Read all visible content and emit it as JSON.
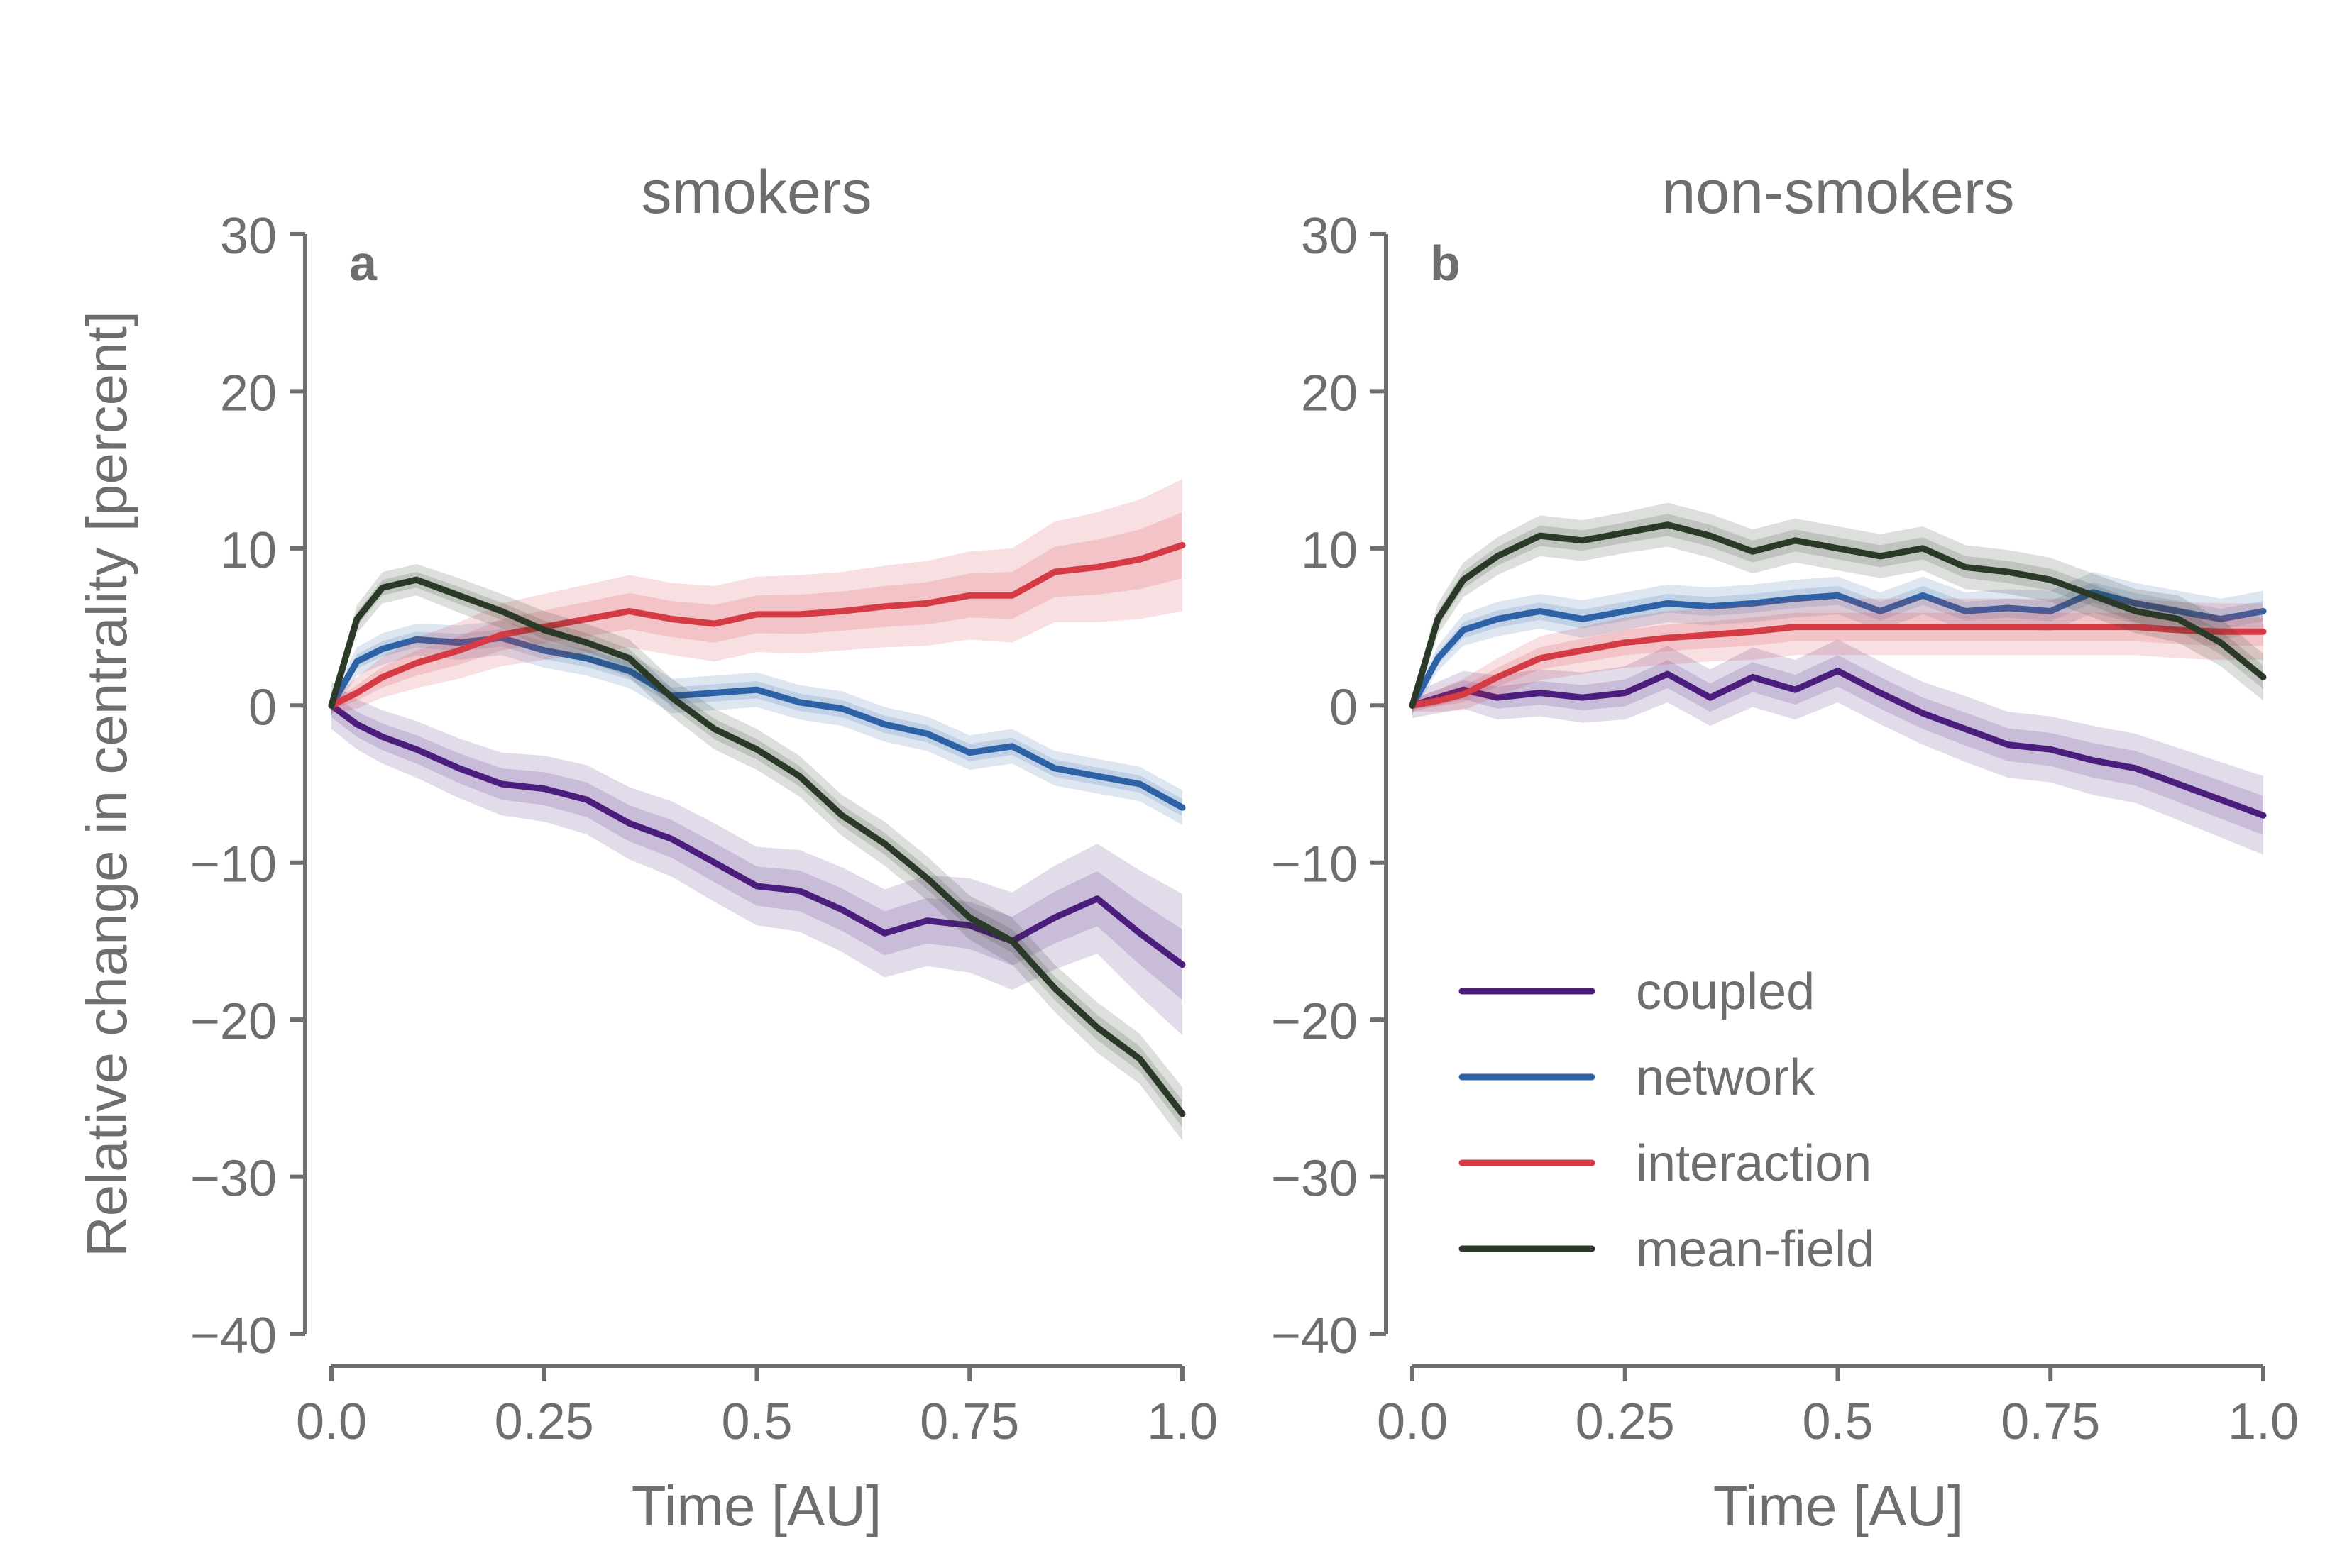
{
  "chart_data": [
    {
      "panel": "a",
      "type": "line",
      "title": "smokers",
      "xlabel": "Time [AU]",
      "ylabel": "Relative change in centrality [percent]",
      "xlim": [
        0,
        1
      ],
      "ylim": [
        -40,
        30
      ],
      "xticks": [
        0,
        0.25,
        0.5,
        0.75,
        1.0
      ],
      "xtick_labels": [
        "0.0",
        "0.25",
        "0.5",
        "0.75",
        "1.0"
      ],
      "yticks": [
        30,
        20,
        10,
        0,
        -10,
        -20,
        -30,
        -40
      ],
      "ytick_labels": [
        "30",
        "20",
        "10",
        "0",
        "−10",
        "−20",
        "−30",
        "−40"
      ],
      "x": [
        0,
        0.03,
        0.06,
        0.1,
        0.15,
        0.2,
        0.25,
        0.3,
        0.35,
        0.4,
        0.45,
        0.5,
        0.55,
        0.6,
        0.65,
        0.7,
        0.75,
        0.8,
        0.85,
        0.9,
        0.95,
        1.0
      ],
      "series": [
        {
          "name": "coupled",
          "values": [
            0,
            -1.2,
            -2,
            -2.8,
            -4,
            -5,
            -5.3,
            -6,
            -7.5,
            -8.5,
            -10,
            -11.5,
            -11.8,
            -13,
            -14.5,
            -13.7,
            -14,
            -15,
            -13.5,
            -12.3,
            -14.5,
            -16.5
          ],
          "band": [
            1.5,
            1.6,
            1.7,
            1.8,
            1.9,
            2.0,
            2.1,
            2.2,
            2.3,
            2.4,
            2.5,
            2.5,
            2.6,
            2.7,
            2.8,
            2.9,
            3.0,
            3.1,
            3.3,
            3.5,
            4.0,
            4.5
          ]
        },
        {
          "name": "network",
          "values": [
            0,
            2.8,
            3.6,
            4.2,
            4.0,
            4.3,
            3.5,
            3.0,
            2.2,
            0.6,
            0.8,
            1.0,
            0.2,
            -0.2,
            -1.2,
            -1.8,
            -3.0,
            -2.6,
            -4.0,
            -4.5,
            -5.0,
            -6.5
          ],
          "band": [
            0.6,
            0.9,
            1.0,
            1.0,
            1.1,
            1.1,
            1.1,
            1.1,
            1.1,
            1.1,
            1.1,
            1.1,
            1.1,
            1.1,
            1.1,
            1.1,
            1.1,
            1.1,
            1.1,
            1.1,
            1.1,
            1.1
          ]
        },
        {
          "name": "interaction",
          "values": [
            0,
            0.8,
            1.8,
            2.7,
            3.5,
            4.5,
            5.0,
            5.5,
            6.0,
            5.5,
            5.2,
            5.8,
            5.8,
            6.0,
            6.3,
            6.5,
            7.0,
            7.0,
            8.5,
            8.8,
            9.3,
            10.2
          ],
          "band": [
            0.5,
            1.0,
            1.3,
            1.6,
            1.8,
            2.0,
            2.1,
            2.2,
            2.3,
            2.3,
            2.4,
            2.4,
            2.5,
            2.5,
            2.6,
            2.7,
            2.8,
            3.0,
            3.2,
            3.5,
            3.8,
            4.2
          ]
        },
        {
          "name": "mean-field",
          "values": [
            0,
            5.5,
            7.5,
            8.0,
            7.0,
            6.0,
            4.8,
            4.0,
            3.0,
            0.5,
            -1.5,
            -2.8,
            -4.5,
            -7.0,
            -8.8,
            -11.0,
            -13.5,
            -15.0,
            -18.0,
            -20.5,
            -22.5,
            -26.0
          ],
          "band": [
            0.6,
            0.9,
            1.0,
            1.0,
            1.1,
            1.1,
            1.2,
            1.2,
            1.2,
            1.2,
            1.3,
            1.3,
            1.3,
            1.3,
            1.4,
            1.4,
            1.4,
            1.5,
            1.5,
            1.6,
            1.6,
            1.7
          ]
        }
      ]
    },
    {
      "panel": "b",
      "type": "line",
      "title": "non-smokers",
      "xlabel": "Time [AU]",
      "ylabel": "",
      "xlim": [
        0,
        1
      ],
      "ylim": [
        -40,
        30
      ],
      "xticks": [
        0,
        0.25,
        0.5,
        0.75,
        1.0
      ],
      "xtick_labels": [
        "0.0",
        "0.25",
        "0.5",
        "0.75",
        "1.0"
      ],
      "yticks": [
        30,
        20,
        10,
        0,
        -10,
        -20,
        -30,
        -40
      ],
      "ytick_labels": [
        "30",
        "20",
        "10",
        "0",
        "−10",
        "−20",
        "−30",
        "−40"
      ],
      "x": [
        0,
        0.03,
        0.06,
        0.1,
        0.15,
        0.2,
        0.25,
        0.3,
        0.35,
        0.4,
        0.45,
        0.5,
        0.55,
        0.6,
        0.65,
        0.7,
        0.75,
        0.8,
        0.85,
        0.9,
        0.95,
        1.0
      ],
      "series": [
        {
          "name": "coupled",
          "values": [
            0,
            0.5,
            1.0,
            0.5,
            0.8,
            0.5,
            0.8,
            2.0,
            0.5,
            1.8,
            1.0,
            2.2,
            0.8,
            -0.5,
            -1.5,
            -2.5,
            -2.8,
            -3.5,
            -4.0,
            -5.0,
            -6.0,
            -7.0
          ],
          "band": [
            0.8,
            1.0,
            1.2,
            1.4,
            1.5,
            1.6,
            1.7,
            1.8,
            1.8,
            1.9,
            1.9,
            2.0,
            2.0,
            2.0,
            2.1,
            2.1,
            2.1,
            2.2,
            2.2,
            2.3,
            2.4,
            2.5
          ]
        },
        {
          "name": "network",
          "values": [
            0,
            3.0,
            4.8,
            5.5,
            6.0,
            5.5,
            6.0,
            6.5,
            6.3,
            6.5,
            6.8,
            7.0,
            6.0,
            7.0,
            6.0,
            6.2,
            6.0,
            7.2,
            6.5,
            6.0,
            5.5,
            6.0
          ],
          "band": [
            0.5,
            0.8,
            1.0,
            1.1,
            1.1,
            1.2,
            1.2,
            1.2,
            1.2,
            1.2,
            1.2,
            1.2,
            1.2,
            1.2,
            1.2,
            1.2,
            1.3,
            1.3,
            1.3,
            1.3,
            1.3,
            1.3
          ]
        },
        {
          "name": "interaction",
          "values": [
            0,
            0.3,
            0.7,
            1.8,
            3.0,
            3.5,
            4.0,
            4.3,
            4.5,
            4.7,
            5.0,
            5.0,
            5.0,
            5.0,
            5.0,
            5.0,
            5.0,
            5.0,
            5.0,
            4.8,
            4.7,
            4.7
          ],
          "band": [
            0.4,
            0.7,
            1.0,
            1.2,
            1.4,
            1.5,
            1.6,
            1.7,
            1.7,
            1.8,
            1.8,
            1.8,
            1.8,
            1.8,
            1.8,
            1.8,
            1.8,
            1.8,
            1.8,
            1.8,
            1.8,
            1.8
          ]
        },
        {
          "name": "mean-field",
          "values": [
            0,
            5.5,
            8.0,
            9.5,
            10.8,
            10.5,
            11.0,
            11.5,
            10.8,
            9.8,
            10.5,
            10.0,
            9.5,
            10.0,
            8.8,
            8.5,
            8.0,
            7.0,
            6.0,
            5.5,
            4.0,
            1.8
          ],
          "band": [
            0.6,
            1.0,
            1.1,
            1.2,
            1.3,
            1.3,
            1.3,
            1.4,
            1.4,
            1.4,
            1.4,
            1.4,
            1.4,
            1.4,
            1.4,
            1.4,
            1.4,
            1.4,
            1.4,
            1.5,
            1.5,
            1.5
          ]
        }
      ]
    }
  ],
  "colors": {
    "coupled": "#4b1d7d",
    "network": "#2e62a6",
    "interaction": "#d43b45",
    "mean-field": "#2b3a28",
    "axis": "#6e6d6f"
  },
  "legend": {
    "placement": "lower-right of panel b",
    "entries": [
      "coupled",
      "network",
      "interaction",
      "mean-field"
    ]
  }
}
